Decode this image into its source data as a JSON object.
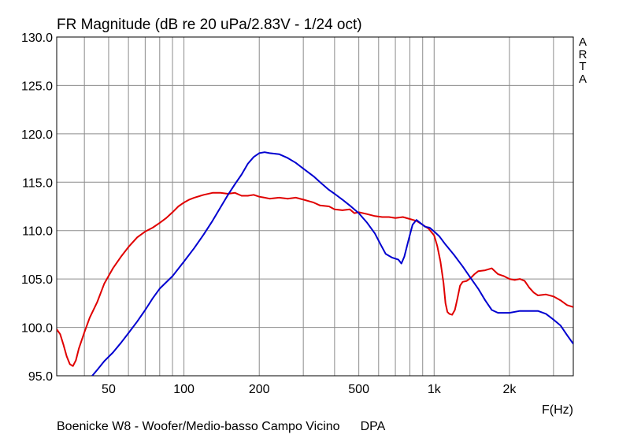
{
  "chart_data": {
    "type": "line",
    "title": "FR Magnitude (dB re 20 uPa/2.83V - 1/24 oct)",
    "xlabel": "F(Hz)",
    "ylabel": "",
    "x_scale": "log",
    "xlim": [
      31,
      3600
    ],
    "ylim": [
      95,
      130
    ],
    "grid": true,
    "x_ticks": [
      {
        "value": 50,
        "label": "50"
      },
      {
        "value": 100,
        "label": "100"
      },
      {
        "value": 200,
        "label": "200"
      },
      {
        "value": 500,
        "label": "500"
      },
      {
        "value": 1000,
        "label": "1k"
      },
      {
        "value": 2000,
        "label": "2k"
      }
    ],
    "y_ticks": [
      {
        "value": 95,
        "label": "95.0"
      },
      {
        "value": 100,
        "label": "100.0"
      },
      {
        "value": 105,
        "label": "105.0"
      },
      {
        "value": 110,
        "label": "110.0"
      },
      {
        "value": 115,
        "label": "115.0"
      },
      {
        "value": 120,
        "label": "120.0"
      },
      {
        "value": 125,
        "label": "125.0"
      },
      {
        "value": 130,
        "label": "130.0"
      }
    ],
    "series": [
      {
        "color": "#e00000",
        "points": [
          [
            31,
            99.8
          ],
          [
            32,
            99.3
          ],
          [
            33,
            98.2
          ],
          [
            34,
            97.0
          ],
          [
            35,
            96.2
          ],
          [
            36,
            96.0
          ],
          [
            37,
            96.6
          ],
          [
            38,
            97.8
          ],
          [
            40,
            99.5
          ],
          [
            42,
            101.0
          ],
          [
            45,
            102.6
          ],
          [
            48,
            104.5
          ],
          [
            52,
            106.1
          ],
          [
            56,
            107.3
          ],
          [
            60,
            108.3
          ],
          [
            65,
            109.3
          ],
          [
            70,
            109.9
          ],
          [
            75,
            110.3
          ],
          [
            80,
            110.8
          ],
          [
            85,
            111.3
          ],
          [
            90,
            111.9
          ],
          [
            95,
            112.5
          ],
          [
            100,
            112.9
          ],
          [
            105,
            113.2
          ],
          [
            110,
            113.4
          ],
          [
            120,
            113.7
          ],
          [
            130,
            113.9
          ],
          [
            140,
            113.9
          ],
          [
            150,
            113.8
          ],
          [
            160,
            113.9
          ],
          [
            170,
            113.6
          ],
          [
            180,
            113.6
          ],
          [
            190,
            113.7
          ],
          [
            200,
            113.5
          ],
          [
            210,
            113.4
          ],
          [
            220,
            113.3
          ],
          [
            240,
            113.4
          ],
          [
            260,
            113.3
          ],
          [
            280,
            113.4
          ],
          [
            300,
            113.2
          ],
          [
            330,
            112.9
          ],
          [
            350,
            112.6
          ],
          [
            380,
            112.5
          ],
          [
            400,
            112.2
          ],
          [
            430,
            112.1
          ],
          [
            460,
            112.2
          ],
          [
            480,
            111.8
          ],
          [
            500,
            111.9
          ],
          [
            540,
            111.7
          ],
          [
            580,
            111.5
          ],
          [
            620,
            111.4
          ],
          [
            660,
            111.4
          ],
          [
            700,
            111.3
          ],
          [
            750,
            111.4
          ],
          [
            800,
            111.2
          ],
          [
            850,
            111.0
          ],
          [
            900,
            110.6
          ],
          [
            950,
            110.2
          ],
          [
            1000,
            109.5
          ],
          [
            1030,
            108.4
          ],
          [
            1060,
            106.8
          ],
          [
            1090,
            104.6
          ],
          [
            1110,
            102.5
          ],
          [
            1130,
            101.6
          ],
          [
            1150,
            101.4
          ],
          [
            1180,
            101.3
          ],
          [
            1210,
            101.8
          ],
          [
            1240,
            103.0
          ],
          [
            1270,
            104.3
          ],
          [
            1300,
            104.7
          ],
          [
            1350,
            104.8
          ],
          [
            1400,
            105.1
          ],
          [
            1450,
            105.5
          ],
          [
            1500,
            105.8
          ],
          [
            1600,
            105.9
          ],
          [
            1700,
            106.1
          ],
          [
            1800,
            105.5
          ],
          [
            1900,
            105.3
          ],
          [
            2000,
            105.0
          ],
          [
            2100,
            104.9
          ],
          [
            2200,
            105.0
          ],
          [
            2300,
            104.8
          ],
          [
            2400,
            104.1
          ],
          [
            2500,
            103.6
          ],
          [
            2600,
            103.3
          ],
          [
            2800,
            103.4
          ],
          [
            3000,
            103.2
          ],
          [
            3200,
            102.8
          ],
          [
            3400,
            102.3
          ],
          [
            3600,
            102.1
          ]
        ]
      },
      {
        "color": "#0000d0",
        "points": [
          [
            43,
            95.0
          ],
          [
            45,
            95.6
          ],
          [
            48,
            96.5
          ],
          [
            52,
            97.4
          ],
          [
            56,
            98.4
          ],
          [
            60,
            99.4
          ],
          [
            65,
            100.6
          ],
          [
            70,
            101.8
          ],
          [
            75,
            103.0
          ],
          [
            80,
            104.0
          ],
          [
            90,
            105.3
          ],
          [
            100,
            106.8
          ],
          [
            110,
            108.2
          ],
          [
            120,
            109.6
          ],
          [
            130,
            111.0
          ],
          [
            140,
            112.4
          ],
          [
            150,
            113.7
          ],
          [
            160,
            114.8
          ],
          [
            170,
            115.8
          ],
          [
            180,
            116.9
          ],
          [
            190,
            117.6
          ],
          [
            200,
            118.0
          ],
          [
            210,
            118.1
          ],
          [
            220,
            118.0
          ],
          [
            240,
            117.9
          ],
          [
            260,
            117.5
          ],
          [
            280,
            117.0
          ],
          [
            300,
            116.4
          ],
          [
            330,
            115.6
          ],
          [
            350,
            115.0
          ],
          [
            380,
            114.2
          ],
          [
            400,
            113.8
          ],
          [
            430,
            113.2
          ],
          [
            460,
            112.6
          ],
          [
            500,
            111.8
          ],
          [
            540,
            110.8
          ],
          [
            580,
            109.7
          ],
          [
            610,
            108.6
          ],
          [
            640,
            107.6
          ],
          [
            680,
            107.2
          ],
          [
            720,
            107.0
          ],
          [
            740,
            106.6
          ],
          [
            760,
            107.3
          ],
          [
            790,
            109.0
          ],
          [
            820,
            110.6
          ],
          [
            850,
            111.1
          ],
          [
            880,
            110.8
          ],
          [
            920,
            110.4
          ],
          [
            960,
            110.3
          ],
          [
            1000,
            109.9
          ],
          [
            1050,
            109.4
          ],
          [
            1100,
            108.7
          ],
          [
            1200,
            107.5
          ],
          [
            1300,
            106.3
          ],
          [
            1400,
            105.1
          ],
          [
            1500,
            104.0
          ],
          [
            1600,
            102.8
          ],
          [
            1700,
            101.8
          ],
          [
            1800,
            101.5
          ],
          [
            2000,
            101.5
          ],
          [
            2200,
            101.7
          ],
          [
            2400,
            101.7
          ],
          [
            2600,
            101.7
          ],
          [
            2800,
            101.4
          ],
          [
            3000,
            100.8
          ],
          [
            3200,
            100.2
          ],
          [
            3400,
            99.2
          ],
          [
            3600,
            98.3
          ]
        ]
      }
    ]
  },
  "branding": {
    "letters": [
      "A",
      "R",
      "T",
      "A"
    ]
  },
  "footer": {
    "caption": "Boenicke W8 - Woofer/Medio-basso Campo Vicino",
    "method": "DPA"
  }
}
